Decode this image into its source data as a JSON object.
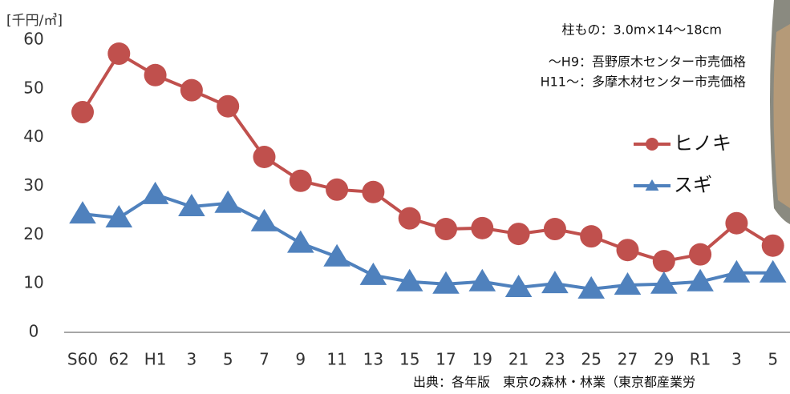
{
  "chart_data": {
    "type": "line",
    "ylabel": "[千円/㎥]",
    "categories": [
      "S60",
      "62",
      "H1",
      "3",
      "5",
      "7",
      "9",
      "11",
      "13",
      "15",
      "17",
      "19",
      "21",
      "23",
      "25",
      "27",
      "29",
      "R1",
      "3",
      "5"
    ],
    "series": [
      {
        "name": "ヒノキ",
        "color": "#c0504d",
        "marker": "circle",
        "values": [
          45.2,
          57.2,
          52.8,
          49.7,
          46.4,
          36.0,
          31.1,
          29.3,
          28.8,
          23.4,
          21.2,
          21.4,
          20.2,
          21.2,
          19.7,
          16.9,
          14.6,
          16.0,
          22.4,
          17.8
        ]
      },
      {
        "name": "スギ",
        "color": "#4f81bd",
        "marker": "triangle",
        "values": [
          24.3,
          23.5,
          28.3,
          25.8,
          26.5,
          22.7,
          18.3,
          15.5,
          11.7,
          10.4,
          9.9,
          10.4,
          9.2,
          10.0,
          8.9,
          9.7,
          9.9,
          10.4,
          12.2,
          12.2
        ]
      }
    ],
    "ylim": [
      0,
      60
    ],
    "yticks": [
      0,
      10,
      20,
      30,
      40,
      50,
      60
    ],
    "grid": false,
    "legend": "right",
    "annotations": [
      "柱もの：3.0m×14～18cm",
      "～H9：吾野原木センター市売価格",
      "H11～：多摩木材センター市売価格"
    ],
    "source": "出典：各年版　東京の森林・林業（東京都産業労"
  }
}
